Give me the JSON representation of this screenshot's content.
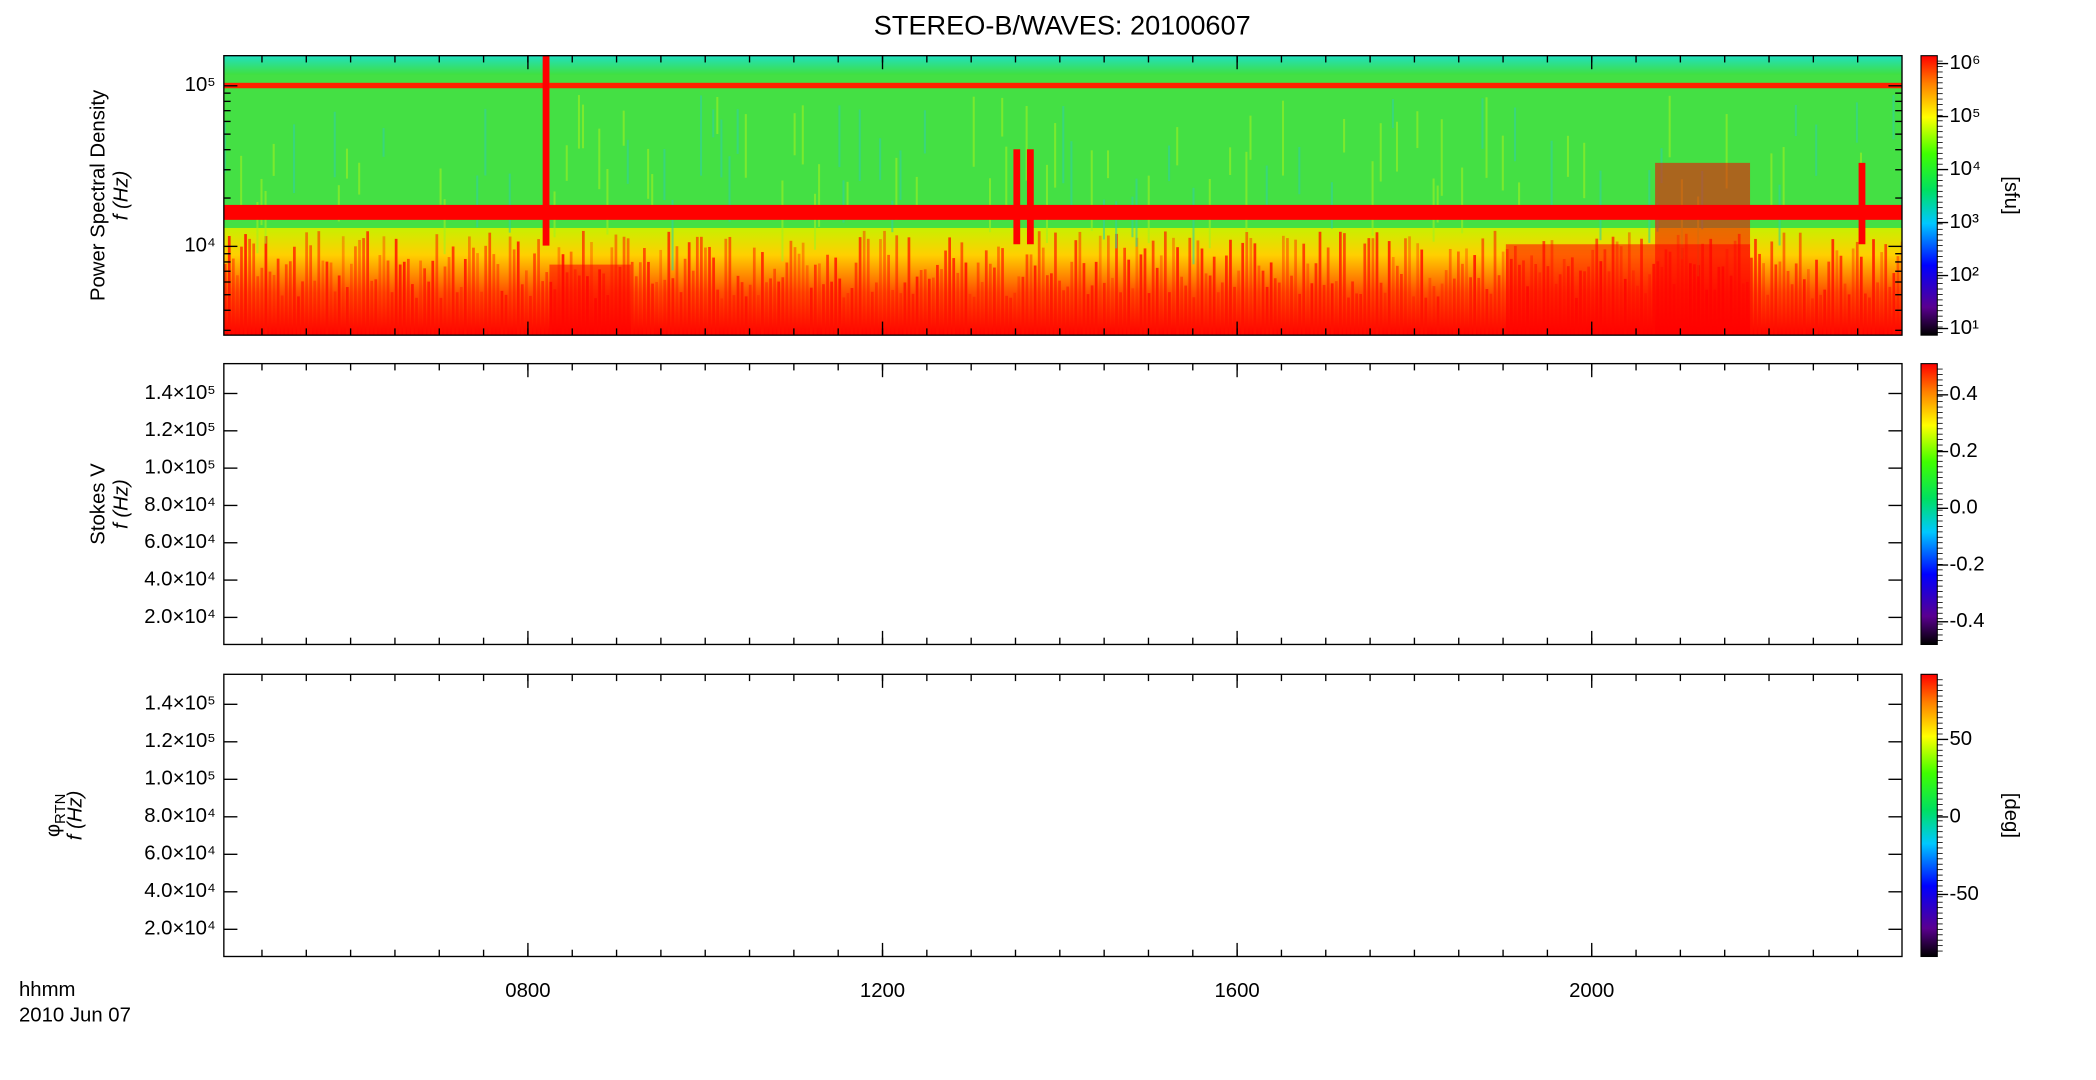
{
  "title": "STEREO-B/WAVES: 20100607",
  "x_axis": {
    "xlabel": "hhmm",
    "date": "2010 Jun 07",
    "xlim": [
      4.57,
      23.5
    ],
    "xticks": [
      {
        "value": 8,
        "label": "0800"
      },
      {
        "value": 12,
        "label": "1200"
      },
      {
        "value": 16,
        "label": "1600"
      },
      {
        "value": 20,
        "label": "2000"
      }
    ]
  },
  "chart_data": [
    {
      "type": "spectrogram",
      "ylabel": "Power Spectral Density",
      "ylabel_f": "f (Hz)",
      "ylog": true,
      "ylim": [
        2800,
        154000
      ],
      "yticks": [
        {
          "value": 10000,
          "label": "10⁴"
        },
        {
          "value": 100000,
          "label": "10⁵"
        }
      ],
      "colorbar": {
        "log": true,
        "lim": [
          7.5,
          1410000
        ],
        "label": "[sfu]",
        "ticks": [
          {
            "value": 10,
            "label": "10¹"
          },
          {
            "value": 100,
            "label": "10²"
          },
          {
            "value": 1000,
            "label": "10³"
          },
          {
            "value": 10000,
            "label": "10⁴"
          },
          {
            "value": 100000,
            "label": "10⁵"
          },
          {
            "value": 1000000,
            "label": "10⁶"
          }
        ]
      }
    },
    {
      "type": "spectrogram",
      "ylabel": "Stokes V",
      "ylabel_f": "f (Hz)",
      "ylog": false,
      "ylim": [
        5500,
        156000
      ],
      "yticks": [
        {
          "value": 20000,
          "label": "2.0×10⁴"
        },
        {
          "value": 40000,
          "label": "4.0×10⁴"
        },
        {
          "value": 60000,
          "label": "6.0×10⁴"
        },
        {
          "value": 80000,
          "label": "8.0×10⁴"
        },
        {
          "value": 100000,
          "label": "1.0×10⁵"
        },
        {
          "value": 120000,
          "label": "1.2×10⁵"
        },
        {
          "value": 140000,
          "label": "1.4×10⁵"
        }
      ],
      "colorbar": {
        "log": false,
        "lim": [
          -0.48,
          0.51
        ],
        "ticks": [
          -0.4,
          -0.2,
          {
            "value": 0,
            "label": "0.0"
          },
          0.2,
          0.4
        ]
      }
    },
    {
      "type": "spectrogram",
      "ylabel": "φ",
      "ylabel_sub": "RTN",
      "ylabel_f": "f (Hz)",
      "ylog": false,
      "ylim": [
        5500,
        156000
      ],
      "yticks": [
        {
          "value": 20000,
          "label": "2.0×10⁴"
        },
        {
          "value": 40000,
          "label": "4.0×10⁴"
        },
        {
          "value": 60000,
          "label": "6.0×10⁴"
        },
        {
          "value": 80000,
          "label": "8.0×10⁴"
        },
        {
          "value": 100000,
          "label": "1.0×10⁵"
        },
        {
          "value": 120000,
          "label": "1.2×10⁵"
        },
        {
          "value": 140000,
          "label": "1.4×10⁵"
        }
      ],
      "colorbar": {
        "log": false,
        "lim": [
          -90,
          92
        ],
        "label": "[deg]",
        "ticks": [
          -50,
          0,
          50
        ]
      }
    }
  ]
}
